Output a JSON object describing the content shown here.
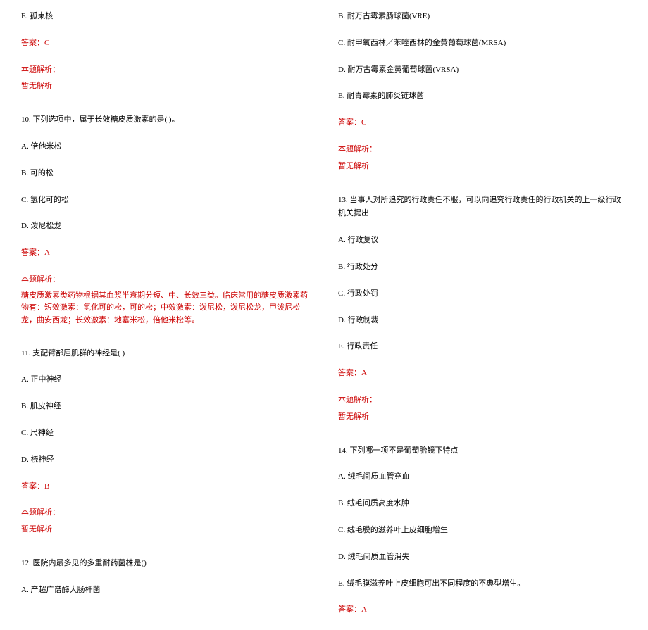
{
  "left": {
    "q9_optE": "E. 孤束核",
    "q9_answer": "答案：C",
    "q9_analysis_label": "本题解析：",
    "q9_analysis": "暂无解析",
    "q10_stem": "10. 下列选项中，属于长效糖皮质激素的是(  )。",
    "q10_optA": "A. 倍他米松",
    "q10_optB": "B. 可的松",
    "q10_optC": "C. 氢化可的松",
    "q10_optD": "D. 泼尼松龙",
    "q10_answer": "答案：A",
    "q10_analysis_label": "本题解析：",
    "q10_analysis": "糖皮质激素类药物根据其血浆半衰期分短、中、长效三类。临床常用的糖皮质激素药物有：短效激素：氢化可的松，可的松；中效激素：泼尼松，泼尼松龙，甲泼尼松龙，曲安西龙；长效激素：地塞米松，倍他米松等。",
    "q11_stem": "11. 支配臂部屈肌群的神经是(  )",
    "q11_optA": "A. 正中神经",
    "q11_optB": "B. 肌皮神经",
    "q11_optC": "C. 尺神经",
    "q11_optD": "D. 桡神经",
    "q11_answer": "答案：B",
    "q11_analysis_label": "本题解析：",
    "q11_analysis": "暂无解析",
    "q12_stem": "12. 医院内最多见的多重耐药菌株是()",
    "q12_optA": "A. 产超广谱酶大肠杆菌"
  },
  "right": {
    "q12_optB": "B. 耐万古霉素肠球菌(VRE)",
    "q12_optC": "C. 耐甲氧西林／苯唑西林的金黄葡萄球菌(MRSA)",
    "q12_optD": "D. 耐万古霉素金黄葡萄球菌(VRSA)",
    "q12_optE": "E. 耐青霉素的肺炎链球菌",
    "q12_answer": "答案：C",
    "q12_analysis_label": "本题解析：",
    "q12_analysis": "暂无解析",
    "q13_stem": "13. 当事人对所追究的行政责任不服，可以向追究行政责任的行政机关的上一级行政机关提出",
    "q13_optA": "A. 行政复议",
    "q13_optB": "B. 行政处分",
    "q13_optC": "C. 行政处罚",
    "q13_optD": "D. 行政制裁",
    "q13_optE": "E. 行政责任",
    "q13_answer": "答案：A",
    "q13_analysis_label": "本题解析：",
    "q13_analysis": "暂无解析",
    "q14_stem": "14. 下列哪一项不是葡萄胎镜下特点",
    "q14_optA": "A. 绒毛间质血管充血",
    "q14_optB": "B. 绒毛间质高度水肿",
    "q14_optC": "C. 绒毛膜的滋养叶上皮细胞增生",
    "q14_optD": "D. 绒毛间质血管消失",
    "q14_optE": "E. 绒毛膜滋养叶上皮细胞可出不同程度的不典型增生。",
    "q14_answer": "答案：A"
  }
}
